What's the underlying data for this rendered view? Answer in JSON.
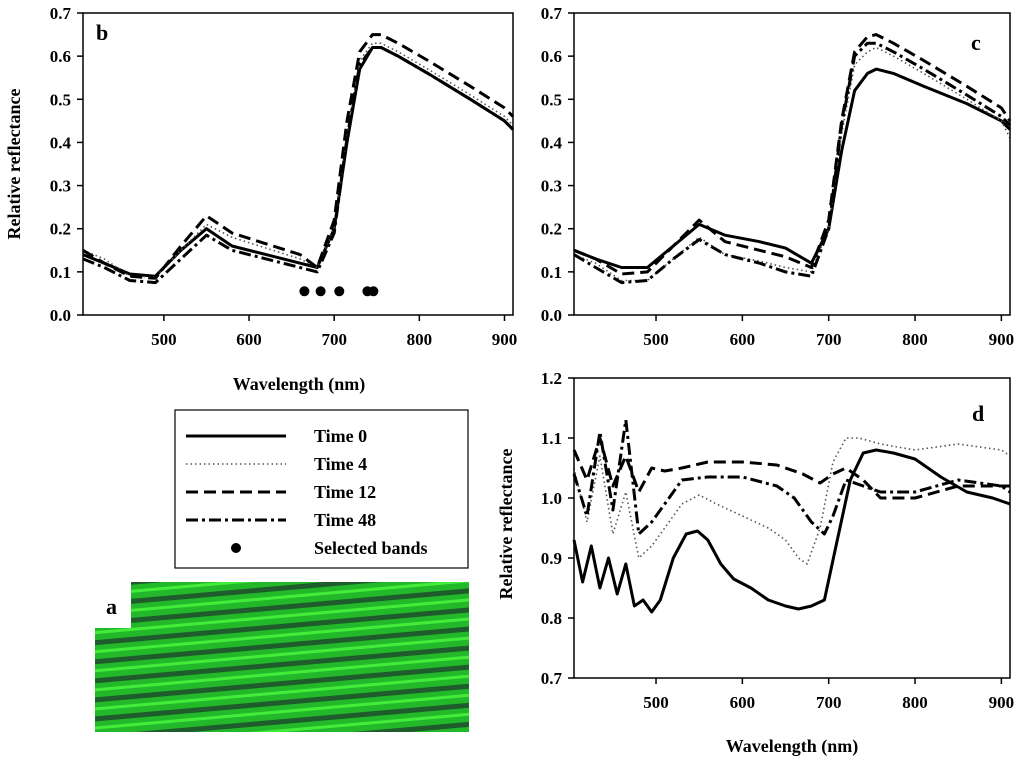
{
  "figure": {
    "legend": {
      "entries": [
        {
          "label": "Time 0",
          "style": "solid"
        },
        {
          "label": "Time 4",
          "style": "dotted"
        },
        {
          "label": "Time 12",
          "style": "dashed"
        },
        {
          "label": "Time 48",
          "style": "dashdot"
        },
        {
          "label": "Selected bands",
          "style": "marker"
        }
      ]
    },
    "image_panel": {
      "label": "a",
      "texture": "green-leaf-stripes",
      "colors": {
        "base": "#1ec31e",
        "dark": "#1e5a2a",
        "bright": "#3cf03c"
      }
    }
  },
  "chart_data": [
    {
      "type": "line",
      "panel": "b",
      "xlabel": "Wavelength (nm)",
      "ylabel": "Relative reflectance",
      "xlim": [
        405,
        910
      ],
      "ylim": [
        0.0,
        0.7
      ],
      "xticks": [
        "500",
        "600",
        "700",
        "800",
        "900"
      ],
      "yticks": [
        "0.0",
        "0.1",
        "0.2",
        "0.3",
        "0.4",
        "0.5",
        "0.6",
        "0.7"
      ],
      "series": [
        {
          "name": "Time 0",
          "style": "solid",
          "x": [
            405,
            430,
            460,
            490,
            520,
            550,
            580,
            620,
            660,
            680,
            700,
            715,
            730,
            745,
            755,
            775,
            810,
            860,
            900,
            910
          ],
          "y": [
            0.14,
            0.12,
            0.095,
            0.09,
            0.15,
            0.2,
            0.16,
            0.14,
            0.12,
            0.11,
            0.2,
            0.4,
            0.57,
            0.62,
            0.62,
            0.6,
            0.56,
            0.5,
            0.45,
            0.43
          ]
        },
        {
          "name": "Time 4",
          "style": "dotted",
          "x": [
            405,
            430,
            460,
            490,
            520,
            550,
            580,
            620,
            660,
            680,
            700,
            715,
            730,
            745,
            755,
            775,
            810,
            860,
            900,
            910
          ],
          "y": [
            0.15,
            0.13,
            0.09,
            0.088,
            0.15,
            0.21,
            0.18,
            0.155,
            0.13,
            0.11,
            0.2,
            0.42,
            0.59,
            0.63,
            0.63,
            0.61,
            0.57,
            0.51,
            0.46,
            0.44
          ]
        },
        {
          "name": "Time 12",
          "style": "dashed",
          "x": [
            405,
            430,
            460,
            490,
            520,
            550,
            580,
            620,
            660,
            680,
            700,
            715,
            730,
            745,
            755,
            775,
            810,
            860,
            900,
            910
          ],
          "y": [
            0.15,
            0.12,
            0.09,
            0.085,
            0.16,
            0.23,
            0.19,
            0.165,
            0.14,
            0.11,
            0.22,
            0.45,
            0.61,
            0.65,
            0.65,
            0.63,
            0.59,
            0.53,
            0.48,
            0.46
          ]
        },
        {
          "name": "Time 48",
          "style": "dashdot",
          "x": [
            405,
            430,
            460,
            490,
            520,
            550,
            580,
            620,
            660,
            680,
            700,
            715,
            730,
            745,
            755,
            775,
            810,
            860,
            900,
            910
          ],
          "y": [
            0.13,
            0.11,
            0.08,
            0.075,
            0.13,
            0.185,
            0.15,
            0.13,
            0.11,
            0.1,
            0.19,
            0.41,
            0.58,
            0.62,
            0.62,
            0.6,
            0.56,
            0.5,
            0.45,
            0.43
          ]
        }
      ],
      "selected_bands": {
        "x": [
          665,
          684,
          706,
          739,
          746
        ],
        "y": 0.055
      }
    },
    {
      "type": "line",
      "panel": "c",
      "xlabel": "",
      "ylabel": "",
      "xlim": [
        405,
        910
      ],
      "ylim": [
        0.0,
        0.7
      ],
      "xticks": [
        "500",
        "600",
        "700",
        "800",
        "900"
      ],
      "yticks": [
        "0.0",
        "0.1",
        "0.2",
        "0.3",
        "0.4",
        "0.5",
        "0.6",
        "0.7"
      ],
      "series": [
        {
          "name": "Time 0",
          "style": "solid",
          "x": [
            405,
            430,
            460,
            490,
            520,
            550,
            580,
            620,
            650,
            680,
            700,
            715,
            730,
            745,
            755,
            775,
            810,
            860,
            900,
            910
          ],
          "y": [
            0.15,
            0.13,
            0.11,
            0.11,
            0.16,
            0.21,
            0.185,
            0.17,
            0.155,
            0.12,
            0.2,
            0.38,
            0.52,
            0.56,
            0.57,
            0.56,
            0.53,
            0.49,
            0.45,
            0.43
          ]
        },
        {
          "name": "Time 4",
          "style": "dotted",
          "x": [
            405,
            430,
            460,
            490,
            520,
            550,
            580,
            620,
            650,
            680,
            700,
            715,
            730,
            745,
            755,
            775,
            810,
            860,
            900,
            910
          ],
          "y": [
            0.14,
            0.12,
            0.08,
            0.08,
            0.13,
            0.18,
            0.14,
            0.125,
            0.11,
            0.1,
            0.2,
            0.42,
            0.58,
            0.61,
            0.62,
            0.6,
            0.56,
            0.5,
            0.45,
            0.41
          ]
        },
        {
          "name": "Time 12",
          "style": "dashed",
          "x": [
            405,
            430,
            460,
            490,
            520,
            550,
            580,
            620,
            650,
            680,
            700,
            715,
            730,
            745,
            755,
            775,
            810,
            860,
            900,
            910
          ],
          "y": [
            0.15,
            0.13,
            0.095,
            0.1,
            0.16,
            0.22,
            0.17,
            0.15,
            0.135,
            0.11,
            0.22,
            0.45,
            0.61,
            0.645,
            0.65,
            0.63,
            0.59,
            0.53,
            0.48,
            0.45
          ]
        },
        {
          "name": "Time 48",
          "style": "dashdot",
          "x": [
            405,
            430,
            460,
            490,
            520,
            550,
            580,
            620,
            650,
            680,
            700,
            715,
            730,
            745,
            755,
            775,
            810,
            860,
            900,
            910
          ],
          "y": [
            0.14,
            0.11,
            0.075,
            0.08,
            0.13,
            0.175,
            0.14,
            0.12,
            0.1,
            0.09,
            0.2,
            0.44,
            0.6,
            0.63,
            0.63,
            0.61,
            0.57,
            0.51,
            0.46,
            0.44
          ]
        }
      ]
    },
    {
      "type": "line",
      "panel": "d",
      "xlabel": "Wavelength (nm)",
      "ylabel": "Relative reflectance",
      "xlim": [
        405,
        910
      ],
      "ylim": [
        0.7,
        1.2
      ],
      "xticks": [
        "500",
        "600",
        "700",
        "800",
        "900"
      ],
      "yticks": [
        "0.7",
        "0.8",
        "0.9",
        "1.0",
        "1.1",
        "1.2"
      ],
      "series": [
        {
          "name": "Time 0",
          "style": "solid",
          "x": [
            405,
            415,
            425,
            435,
            445,
            455,
            465,
            475,
            485,
            495,
            505,
            520,
            535,
            548,
            560,
            575,
            590,
            610,
            630,
            650,
            665,
            680,
            695,
            710,
            725,
            740,
            755,
            775,
            800,
            830,
            860,
            890,
            910
          ],
          "y": [
            0.93,
            0.86,
            0.92,
            0.85,
            0.9,
            0.84,
            0.89,
            0.82,
            0.83,
            0.81,
            0.83,
            0.9,
            0.94,
            0.945,
            0.93,
            0.89,
            0.865,
            0.85,
            0.83,
            0.82,
            0.815,
            0.82,
            0.83,
            0.93,
            1.03,
            1.075,
            1.08,
            1.075,
            1.065,
            1.035,
            1.01,
            1.0,
            0.99
          ]
        },
        {
          "name": "Time 4",
          "style": "dotted",
          "x": [
            405,
            420,
            435,
            450,
            465,
            480,
            495,
            510,
            530,
            550,
            570,
            600,
            630,
            650,
            665,
            675,
            690,
            705,
            720,
            735,
            760,
            800,
            850,
            900,
            910
          ],
          "y": [
            1.05,
            0.96,
            1.07,
            0.94,
            1.01,
            0.9,
            0.92,
            0.95,
            0.99,
            1.005,
            0.99,
            0.97,
            0.95,
            0.93,
            0.9,
            0.89,
            0.95,
            1.06,
            1.1,
            1.1,
            1.09,
            1.08,
            1.09,
            1.08,
            1.07
          ]
        },
        {
          "name": "Time 12",
          "style": "dashed",
          "x": [
            405,
            420,
            435,
            450,
            465,
            480,
            495,
            510,
            530,
            560,
            600,
            640,
            670,
            690,
            705,
            720,
            740,
            760,
            800,
            850,
            900,
            910
          ],
          "y": [
            1.08,
            1.03,
            1.1,
            1.02,
            1.07,
            1.01,
            1.05,
            1.045,
            1.05,
            1.06,
            1.06,
            1.055,
            1.04,
            1.025,
            1.04,
            1.05,
            1.03,
            1.0,
            1.0,
            1.02,
            1.02,
            1.02
          ]
        },
        {
          "name": "Time 48",
          "style": "dashdot",
          "x": [
            405,
            420,
            435,
            450,
            465,
            480,
            495,
            510,
            530,
            560,
            600,
            640,
            660,
            680,
            695,
            705,
            720,
            740,
            760,
            800,
            850,
            900,
            910
          ],
          "y": [
            1.04,
            0.97,
            1.11,
            0.98,
            1.13,
            0.94,
            0.96,
            0.99,
            1.03,
            1.035,
            1.035,
            1.02,
            1.0,
            0.96,
            0.94,
            0.97,
            1.03,
            1.02,
            1.01,
            1.01,
            1.03,
            1.02,
            1.01
          ]
        }
      ]
    }
  ]
}
